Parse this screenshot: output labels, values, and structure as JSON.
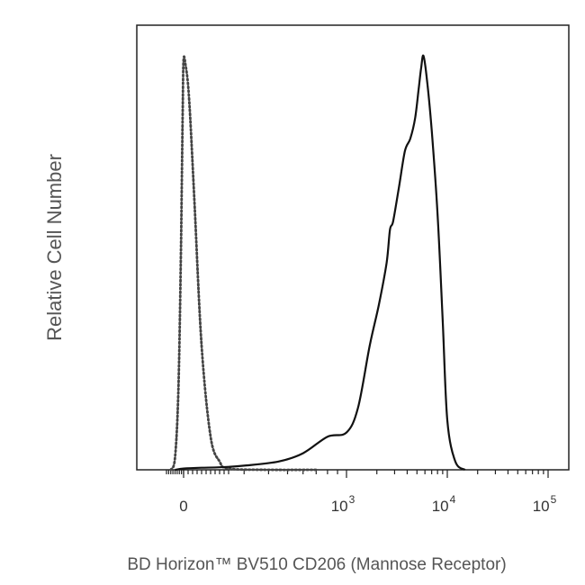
{
  "chart_data": {
    "type": "line",
    "xlabel": "BD Horizon™ BV510 CD206 (Mannose Receptor)",
    "ylabel": "Relative Cell Number",
    "x_scale": "biexponential",
    "x_ticks": [
      {
        "value": 0,
        "base": "0",
        "exp": ""
      },
      {
        "value": 1000,
        "base": "10",
        "exp": "3"
      },
      {
        "value": 10000,
        "base": "10",
        "exp": "4"
      },
      {
        "value": 100000,
        "base": "10",
        "exp": "5"
      }
    ],
    "y_range": [
      0,
      100
    ],
    "grid": false,
    "series": [
      {
        "style": "dotted",
        "x": [
          -150,
          -100,
          -60,
          -30,
          -10,
          0,
          10,
          30,
          60,
          100,
          150,
          200,
          250,
          400,
          700
        ],
        "y": [
          0,
          3,
          20,
          55,
          88,
          99,
          98,
          90,
          65,
          30,
          8,
          2,
          0.3,
          0,
          0
        ]
      },
      {
        "style": "solid",
        "x": [
          -100,
          0,
          100,
          200,
          300,
          450,
          600,
          800,
          1000,
          1300,
          1700,
          2100,
          2500,
          2700,
          2900,
          3300,
          3800,
          4300,
          4800,
          5200,
          5500,
          5800,
          6300,
          7000,
          8000,
          9000,
          10000,
          12000,
          15000
        ],
        "y": [
          0,
          0.3,
          0.5,
          0.6,
          1,
          2,
          4,
          8,
          9,
          15,
          30,
          40,
          50,
          58,
          60,
          68,
          77,
          80,
          85,
          92,
          97,
          100,
          94,
          82,
          62,
          36,
          12,
          2,
          0
        ]
      }
    ]
  }
}
